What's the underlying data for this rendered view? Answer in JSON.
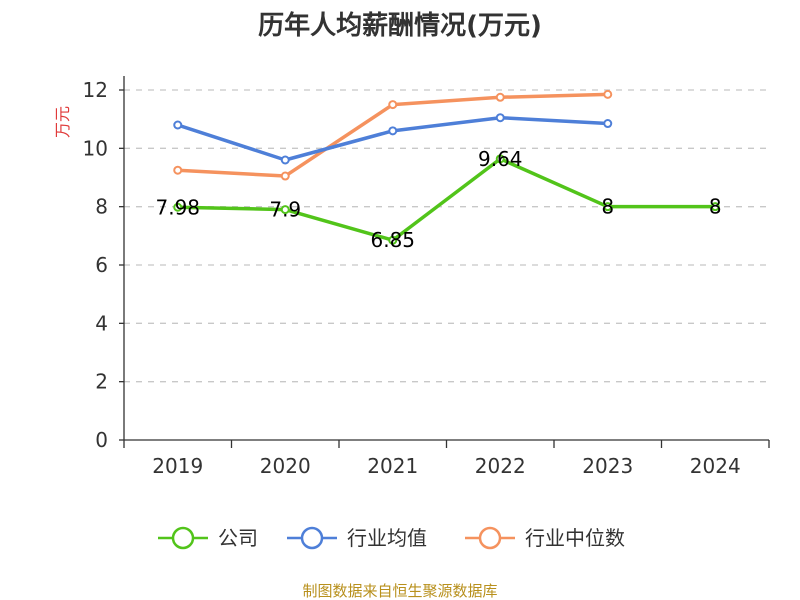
{
  "chart_data": {
    "type": "line",
    "title": "历年人均薪酬情况(万元)",
    "ylabel": "万元",
    "xlabel": "",
    "categories": [
      "2019",
      "2020",
      "2021",
      "2022",
      "2023",
      "2024"
    ],
    "yticks": [
      "0",
      "2",
      "4",
      "6",
      "8",
      "10",
      "12"
    ],
    "ylim": [
      0,
      12
    ],
    "grid": true,
    "legend_position": "bottom",
    "series": [
      {
        "name": "公司",
        "color": "#52c41a",
        "values": [
          7.98,
          7.9,
          6.85,
          9.64,
          8,
          8
        ],
        "labels": [
          "7.98",
          "7.9",
          "6.85",
          "9.64",
          "8",
          "8"
        ]
      },
      {
        "name": "行业均值",
        "color": "#4e7fd8",
        "values": [
          10.8,
          9.6,
          10.6,
          11.05,
          10.85,
          null
        ]
      },
      {
        "name": "行业中位数",
        "color": "#f5925e",
        "values": [
          9.25,
          9.05,
          11.5,
          11.75,
          11.85,
          null
        ]
      }
    ]
  },
  "footer": {
    "source": "制图数据来自恒生聚源数据库"
  }
}
